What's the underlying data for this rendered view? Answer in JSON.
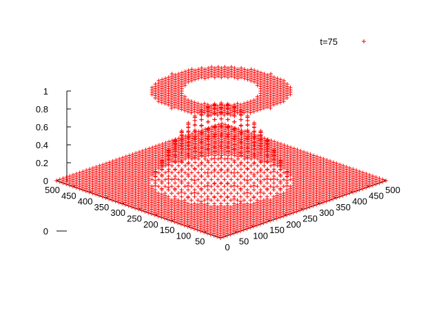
{
  "chart_data": {
    "type": "scatter",
    "title": "",
    "xlabel": "",
    "ylabel": "",
    "zlabel": "",
    "xlim": [
      0,
      500
    ],
    "ylim": [
      0,
      500
    ],
    "zlim": [
      0,
      1
    ],
    "x_ticks": [
      "0",
      "50",
      "100",
      "150",
      "200",
      "250",
      "300",
      "350",
      "400",
      "450",
      "500"
    ],
    "y_ticks": [
      "0",
      "50",
      "100",
      "150",
      "200",
      "250",
      "300",
      "350",
      "400",
      "450",
      "500"
    ],
    "z_ticks": [
      "0",
      "0.2",
      "0.4",
      "0.6",
      "0.8",
      "1"
    ],
    "grid": false,
    "legend_position": "top-right",
    "series": [
      {
        "name": "t=75",
        "marker": "+",
        "color": "#ff0000",
        "description": "Grid of points z(x,y): z=0 on flat plane, raised cylindrical cap near z=1 over a disk centred around (250,250) with radius ~150, and a dome-shaped inner surface; points plotted every 10 units",
        "plateau_z": 1.0,
        "disk_center": [
          250,
          250
        ],
        "disk_radius": 150
      }
    ]
  }
}
